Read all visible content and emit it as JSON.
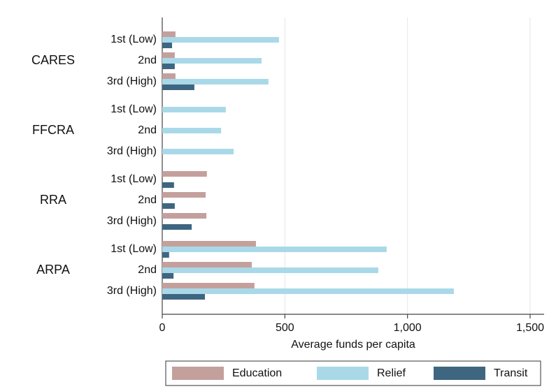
{
  "chart_data": {
    "type": "bar",
    "orientation": "horizontal",
    "groups": [
      "CARES",
      "FFCRA",
      "RRA",
      "ARPA"
    ],
    "categories": [
      "1st (Low)",
      "2nd",
      "3rd (High)",
      "1st (Low)",
      "2nd",
      "3rd (High)",
      "1st (Low)",
      "2nd",
      "3rd (High)",
      "1st (Low)",
      "2nd",
      "3rd (High)"
    ],
    "series": [
      {
        "name": "Education",
        "color": "#c4a09d",
        "values": [
          54,
          51,
          54,
          0,
          0,
          0,
          182,
          177,
          180,
          382,
          365,
          376
        ]
      },
      {
        "name": "Relief",
        "color": "#a9d9e8",
        "values": [
          476,
          405,
          433,
          259,
          240,
          291,
          0,
          0,
          0,
          915,
          881,
          1189
        ]
      },
      {
        "name": "Transit",
        "color": "#3f6680",
        "values": [
          40,
          51,
          131,
          0,
          0,
          0,
          48,
          51,
          120,
          28,
          46,
          174
        ]
      }
    ],
    "xlabel": "Average funds per capita",
    "xlim": [
      0,
      1500
    ],
    "xticks": [
      0,
      500,
      {
        "value": 1000,
        "label": "1,000"
      },
      {
        "value": 1500,
        "label": "1,500"
      }
    ],
    "grid": true,
    "legend": "bottom"
  }
}
